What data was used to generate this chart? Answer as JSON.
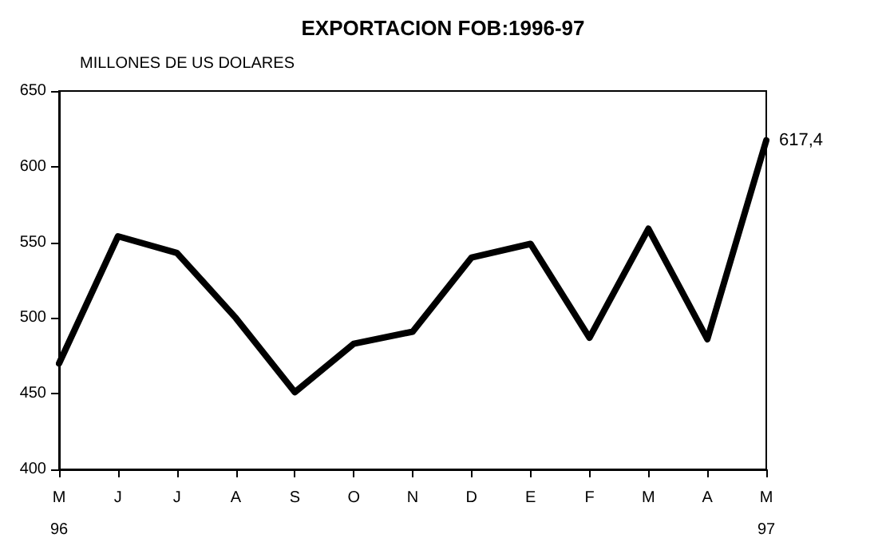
{
  "chart_data": {
    "type": "line",
    "title": "EXPORTACION FOB:1996-97",
    "ylabel": "MILLONES DE US DOLARES",
    "categories": [
      "M\n96",
      "J",
      "J",
      "A",
      "S",
      "O",
      "N",
      "D",
      "E",
      "F",
      "M",
      "A",
      "M\n97"
    ],
    "series": [
      {
        "color": "#000000",
        "values": [
          470,
          554,
          543,
          500,
          451,
          483,
          491,
          540,
          549,
          487,
          559,
          486,
          617.4
        ],
        "value_labels": [
          null,
          null,
          null,
          null,
          null,
          null,
          null,
          null,
          null,
          null,
          null,
          null,
          "617,4"
        ]
      }
    ],
    "ylim": [
      400,
      650
    ],
    "yticks": [
      400,
      450,
      500,
      550,
      600,
      650
    ],
    "grid": false,
    "marker": "none",
    "line_style": "solid"
  }
}
